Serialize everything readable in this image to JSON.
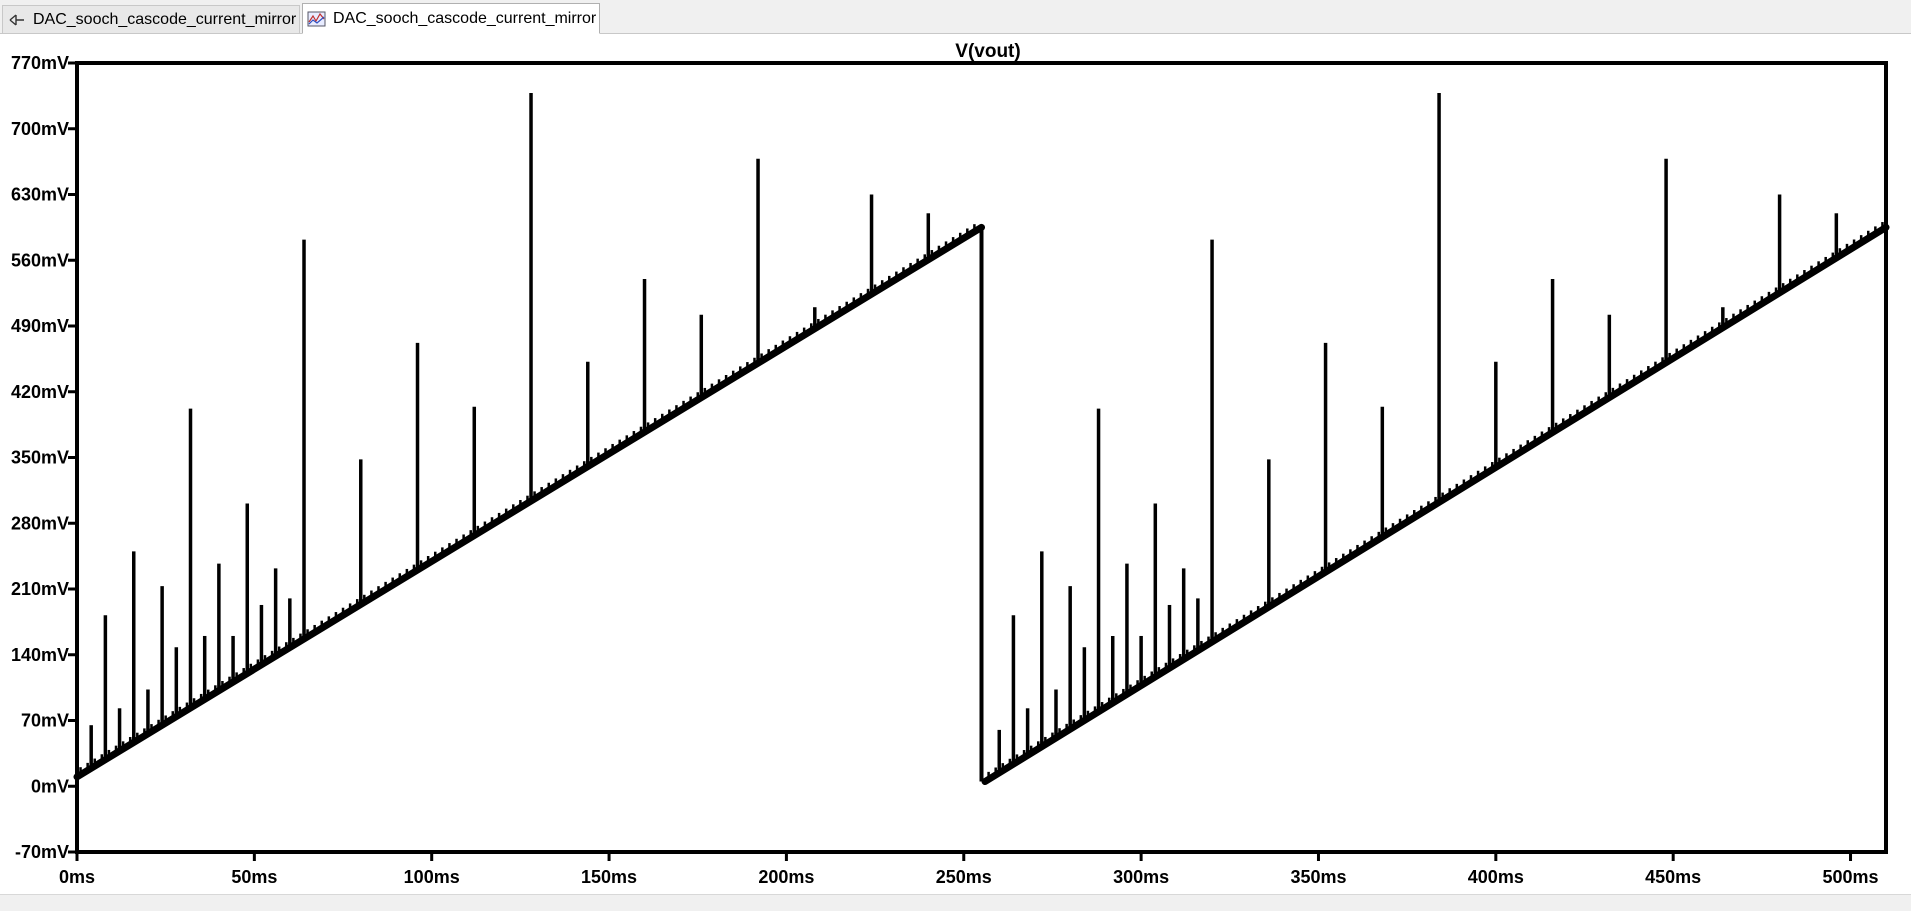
{
  "tabs": [
    {
      "label": "DAC_sooch_cascode_current_mirror",
      "icon": "schematic-icon",
      "active": false
    },
    {
      "label": "DAC_sooch_cascode_current_mirror",
      "icon": "waveform-plot-icon",
      "active": true
    }
  ],
  "chart_data": {
    "type": "line",
    "title": "V(vout)",
    "xlabel": "",
    "ylabel": "",
    "x_unit": "ms",
    "y_unit": "mV",
    "xlim": [
      0,
      510
    ],
    "ylim": [
      -70,
      770
    ],
    "x_ticks": [
      "0ms",
      "50ms",
      "100ms",
      "150ms",
      "200ms",
      "250ms",
      "300ms",
      "350ms",
      "400ms",
      "450ms",
      "500ms"
    ],
    "y_ticks": [
      "770mV",
      "700mV",
      "630mV",
      "560mV",
      "490mV",
      "420mV",
      "350mV",
      "280mV",
      "210mV",
      "140mV",
      "70mV",
      "0mV",
      "-70mV"
    ],
    "grid": false,
    "series_color": "#000000",
    "description_of_waveform": "",
    "series": [
      {
        "ramp_segments": [
          {
            "x": [
              0,
              255
            ],
            "y": [
              10,
              595
            ]
          },
          {
            "x": [
              256,
              510
            ],
            "y": [
              5,
              595
            ]
          }
        ],
        "glitch_peaks": {
          "x": [
            4,
            8,
            12,
            16,
            20,
            24,
            28,
            32,
            36,
            40,
            44,
            48,
            52,
            56,
            60,
            64,
            80,
            96,
            112,
            128,
            144,
            160,
            176,
            192,
            208,
            224,
            240,
            260,
            264,
            268,
            272,
            276,
            280,
            284,
            288,
            292,
            296,
            300,
            304,
            308,
            312,
            316,
            320,
            336,
            352,
            368,
            384,
            400,
            416,
            432,
            448,
            464,
            480,
            496
          ],
          "y": [
            65,
            182,
            83,
            250,
            103,
            213,
            148,
            402,
            160,
            237,
            160,
            301,
            193,
            232,
            200,
            582,
            348,
            472,
            404,
            738,
            452,
            540,
            502,
            668,
            510,
            630,
            610,
            60,
            182,
            83,
            250,
            103,
            213,
            148,
            402,
            160,
            237,
            160,
            301,
            193,
            232,
            200,
            582,
            348,
            472,
            404,
            738,
            452,
            540,
            502,
            668,
            510,
            630,
            610
          ]
        }
      }
    ]
  }
}
